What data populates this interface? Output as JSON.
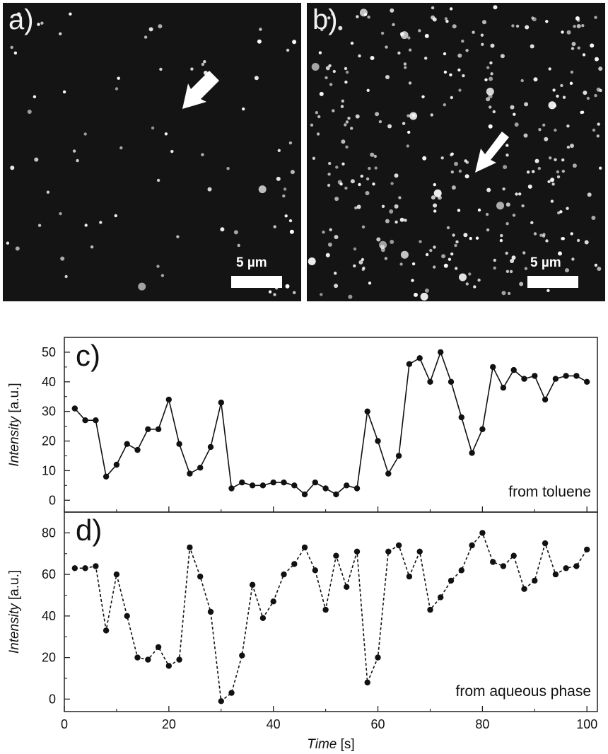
{
  "micrographs": [
    {
      "label": "a)",
      "scale_bar": "5 µm",
      "spot_count": 75,
      "arrow_direction": "down-left"
    },
    {
      "label": "b)",
      "scale_bar": "5 µm",
      "spot_count": 330,
      "arrow_direction": "down-left"
    }
  ],
  "chart_data": [
    {
      "type": "line",
      "panel_label": "c)",
      "annotation": "from toluene",
      "ylabel": "Intensity",
      "ylabel_unit": "[a.u.]",
      "xlim": [
        0,
        102
      ],
      "ylim": [
        -4,
        55
      ],
      "yticks": [
        0,
        10,
        20,
        30,
        40,
        50
      ],
      "line_style": "solid",
      "series": [
        {
          "x": [
            2,
            4,
            6,
            8,
            10,
            12,
            14,
            16,
            18,
            20,
            22,
            24,
            26,
            28,
            30,
            32,
            34,
            36,
            38,
            40,
            42,
            44,
            46,
            48,
            50,
            52,
            54,
            56,
            58,
            60,
            62,
            64,
            66,
            68,
            70,
            72,
            74,
            76,
            78,
            80,
            82,
            84,
            86,
            88,
            90,
            92,
            94,
            96,
            98,
            100
          ],
          "y": [
            31,
            27,
            27,
            8,
            12,
            19,
            17,
            24,
            24,
            34,
            19,
            9,
            11,
            18,
            33,
            4,
            6,
            5,
            5,
            6,
            6,
            5,
            2,
            6,
            4,
            2,
            5,
            4,
            30,
            20,
            9,
            15,
            46,
            48,
            40,
            50,
            40,
            28,
            16,
            24,
            45,
            38,
            44,
            41,
            42,
            34,
            41,
            42,
            42,
            40
          ]
        }
      ]
    },
    {
      "type": "line",
      "panel_label": "d)",
      "annotation": "from aqueous phase",
      "ylabel": "Intensity",
      "ylabel_unit": "[a.u.]",
      "xlabel": "Time",
      "xlabel_unit": "[s]",
      "xlim": [
        0,
        102
      ],
      "xticks": [
        0,
        20,
        40,
        60,
        80,
        100
      ],
      "ylim": [
        -6,
        90
      ],
      "yticks": [
        0,
        20,
        40,
        60,
        80
      ],
      "line_style": "dashed",
      "series": [
        {
          "x": [
            2,
            4,
            6,
            8,
            10,
            12,
            14,
            16,
            18,
            20,
            22,
            24,
            26,
            28,
            30,
            32,
            34,
            36,
            38,
            40,
            42,
            44,
            46,
            48,
            50,
            52,
            54,
            56,
            58,
            60,
            62,
            64,
            66,
            68,
            70,
            72,
            74,
            76,
            78,
            80,
            82,
            84,
            86,
            88,
            90,
            92,
            94,
            96,
            98,
            100
          ],
          "y": [
            63,
            63,
            64,
            33,
            60,
            40,
            20,
            19,
            25,
            16,
            19,
            73,
            59,
            42,
            -1,
            3,
            21,
            55,
            39,
            47,
            60,
            65,
            73,
            62,
            43,
            69,
            54,
            71,
            8,
            20,
            71,
            74,
            59,
            71,
            43,
            49,
            57,
            62,
            74,
            80,
            66,
            64,
            69,
            53,
            57,
            75,
            60,
            63,
            64,
            72
          ]
        }
      ]
    }
  ]
}
